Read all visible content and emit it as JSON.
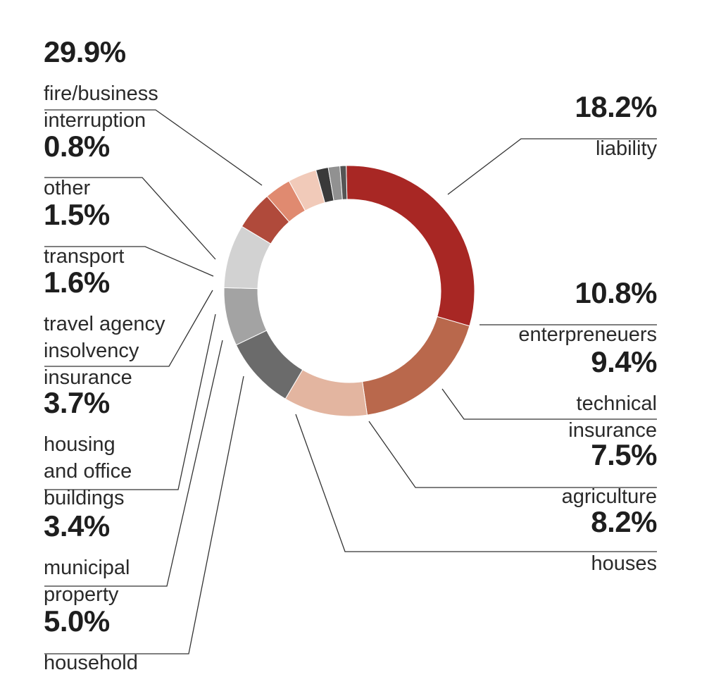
{
  "chart_data": {
    "type": "pie",
    "title": "",
    "slices": [
      {
        "label": "fire/business interruption",
        "value": 29.9,
        "value_label": "29.9%",
        "color": "#a82724"
      },
      {
        "label": "liability",
        "value": 18.2,
        "value_label": "18.2%",
        "color": "#b9684c"
      },
      {
        "label": "enterpreneuers",
        "value": 10.8,
        "value_label": "10.8%",
        "color": "#e3b5a0"
      },
      {
        "label": "technical insurance",
        "value": 9.4,
        "value_label": "9.4%",
        "color": "#6b6b6b"
      },
      {
        "label": "agriculture",
        "value": 7.5,
        "value_label": "7.5%",
        "color": "#a3a3a3"
      },
      {
        "label": "houses",
        "value": 8.2,
        "value_label": "8.2%",
        "color": "#d2d2d2"
      },
      {
        "label": "household",
        "value": 5.0,
        "value_label": "5.0%",
        "color": "#b04a3b"
      },
      {
        "label": "municipal property",
        "value": 3.4,
        "value_label": "3.4%",
        "color": "#e08a70"
      },
      {
        "label": "housing and office buildings",
        "value": 3.7,
        "value_label": "3.7%",
        "color": "#f1cab9"
      },
      {
        "label": "travel agency insolvency insurance",
        "value": 1.6,
        "value_label": "1.6%",
        "color": "#3a3a3a"
      },
      {
        "label": "transport",
        "value": 1.5,
        "value_label": "1.5%",
        "color": "#919191"
      },
      {
        "label": "other",
        "value": 0.8,
        "value_label": "0.8%",
        "color": "#555555"
      }
    ],
    "labels": {
      "fire": {
        "pct": "29.9%",
        "name": "fire/business\ninterruption"
      },
      "liability": {
        "pct": "18.2%",
        "name": "liability"
      },
      "enterpreneuers": {
        "pct": "10.8%",
        "name": "enterpreneuers"
      },
      "technical": {
        "pct": "9.4%",
        "name": "technical \ninsurance"
      },
      "agriculture": {
        "pct": "7.5%",
        "name": "agriculture"
      },
      "houses": {
        "pct": "8.2%",
        "name": "houses"
      },
      "household": {
        "pct": "5.0%",
        "name": "household"
      },
      "municipal": {
        "pct": "3.4%",
        "name": "municipal\nproperty"
      },
      "housing": {
        "pct": "3.7%",
        "name": "housing\nand office\nbuildings"
      },
      "travel": {
        "pct": "1.6%",
        "name": "travel agency\ninsolvency\ninsurance"
      },
      "transport": {
        "pct": "1.5%",
        "name": "transport"
      },
      "other": {
        "pct": "0.8%",
        "name": "other"
      }
    },
    "legend": "none",
    "grid": false
  }
}
